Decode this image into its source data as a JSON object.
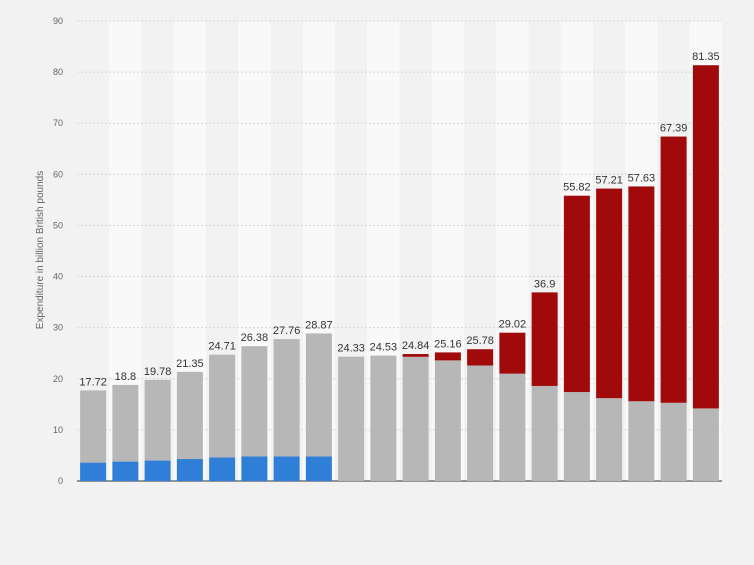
{
  "chart_data": {
    "type": "bar",
    "stacked": true,
    "ylabel": "Expenditure in billion British pounds",
    "ylim": [
      0,
      90
    ],
    "yticks": [
      0,
      10,
      20,
      30,
      40,
      50,
      60,
      70,
      80,
      90
    ],
    "grid": true,
    "categories": [
      "",
      "",
      "",
      "",
      "",
      "",
      "",
      "",
      "",
      "",
      "",
      "",
      "",
      "",
      "",
      "",
      "",
      "",
      "",
      ""
    ],
    "totals": [
      17.72,
      18.8,
      19.78,
      21.35,
      24.71,
      26.38,
      27.76,
      28.87,
      24.33,
      24.53,
      24.84,
      25.16,
      25.78,
      29.02,
      36.9,
      55.82,
      57.21,
      57.63,
      67.39,
      81.35
    ],
    "series": [
      {
        "color": "#2f7ed8",
        "values": [
          3.6,
          3.8,
          4.0,
          4.3,
          4.6,
          4.8,
          4.8,
          4.8,
          0,
          0,
          0,
          0,
          0,
          0,
          0,
          0,
          0,
          0,
          0,
          0
        ]
      },
      {
        "color": "#b7b7b7",
        "values": [
          14.12,
          15.0,
          15.78,
          17.05,
          20.11,
          21.58,
          22.96,
          24.07,
          24.33,
          24.53,
          24.3,
          23.6,
          22.6,
          21.0,
          18.6,
          17.4,
          16.2,
          15.6,
          15.3,
          14.2
        ]
      },
      {
        "color": "#a10a0a",
        "values": [
          0,
          0,
          0,
          0,
          0,
          0,
          0,
          0,
          0,
          0,
          0.54,
          1.56,
          3.18,
          8.02,
          18.3,
          38.42,
          41.01,
          42.03,
          52.09,
          67.15
        ]
      }
    ]
  }
}
